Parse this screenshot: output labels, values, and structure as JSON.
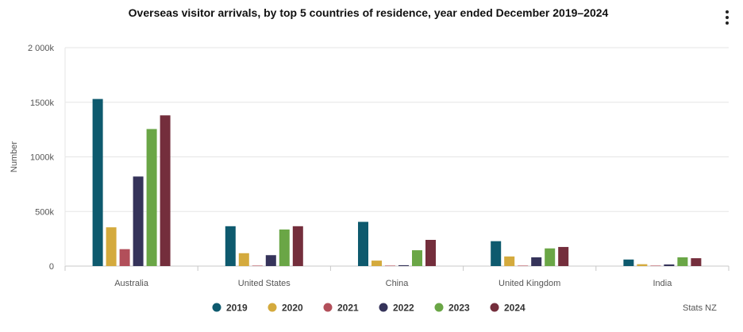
{
  "chart_data": {
    "type": "bar",
    "title": "Overseas visitor arrivals, by top 5 countries of residence, year ended December 2019–2024",
    "ylabel": "Number",
    "xlabel": "",
    "categories": [
      "Australia",
      "United States",
      "China",
      "United Kingdom",
      "India"
    ],
    "ylim": [
      0,
      2000000
    ],
    "yticks": [
      0,
      500000,
      1000000,
      1500000,
      2000000
    ],
    "ytick_labels": [
      "0",
      "500k",
      "1000k",
      "1500k",
      "2 000k"
    ],
    "grid": true,
    "legend_position": "bottom",
    "series": [
      {
        "name": "2019",
        "color": "#0e5a6e",
        "values": [
          1530000,
          365000,
          405000,
          228000,
          60000
        ]
      },
      {
        "name": "2020",
        "color": "#d4aa3d",
        "values": [
          355000,
          118000,
          50000,
          88000,
          17000
        ]
      },
      {
        "name": "2021",
        "color": "#b24f5a",
        "values": [
          155000,
          1000,
          1000,
          1000,
          1000
        ]
      },
      {
        "name": "2022",
        "color": "#35335a",
        "values": [
          820000,
          100000,
          8000,
          80000,
          15000
        ]
      },
      {
        "name": "2023",
        "color": "#6aa646",
        "values": [
          1255000,
          335000,
          145000,
          162000,
          80000
        ]
      },
      {
        "name": "2024",
        "color": "#742e3c",
        "values": [
          1380000,
          365000,
          240000,
          175000,
          72000
        ]
      }
    ]
  },
  "credit": "Stats NZ",
  "menu_icon": "more-vertical-icon"
}
